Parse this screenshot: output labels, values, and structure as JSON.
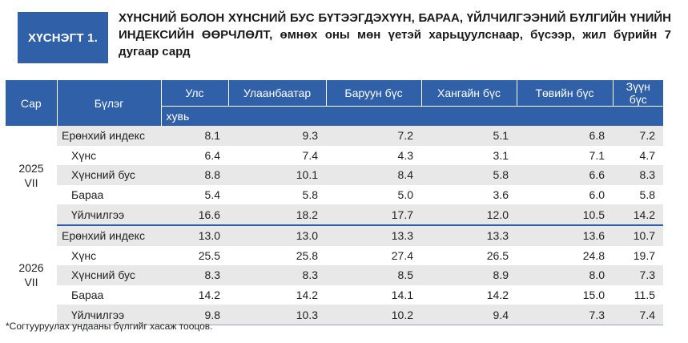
{
  "header": {
    "tag": "ХҮСНЭГТ 1.",
    "title": "ХҮНСНИЙ БОЛОН ХҮНСНИЙ БУС БҮТЭЭГДЭХҮҮН, БАРАА, ҮЙЛЧИЛГЭЭНИЙ БҮЛГИЙН ҮНИЙН ИНДЕКСИЙН ӨӨРЧЛӨЛТ, өмнөх оны мөн үетэй харьцуулснаар, бүсээр, жил бүрийн 7 дугаар сард"
  },
  "table": {
    "col_sar": "Сар",
    "col_group": "Бүлэг",
    "columns": [
      "Улс",
      "Улаанбаатар",
      "Баруун бүс",
      "Хангайн бүс",
      "Төвийн бүс",
      "Зүүн бүс"
    ],
    "unit": "хувь",
    "blocks": [
      {
        "year": "2025",
        "month": "VII",
        "rows": [
          {
            "label": "Ерөнхий индекс",
            "values": [
              "8.1",
              "9.3",
              "7.2",
              "5.1",
              "6.8",
              "7.2"
            ]
          },
          {
            "label": "Хүнс",
            "values": [
              "6.4",
              "7.4",
              "4.3",
              "3.1",
              "7.1",
              "4.7"
            ]
          },
          {
            "label": "Хүнсний бус",
            "values": [
              "8.8",
              "10.1",
              "8.4",
              "5.8",
              "6.6",
              "8.3"
            ]
          },
          {
            "label": "Бараа",
            "values": [
              "5.4",
              "5.8",
              "5.0",
              "3.6",
              "6.0",
              "5.8"
            ]
          },
          {
            "label": "Үйлчилгээ",
            "values": [
              "16.6",
              "18.2",
              "17.7",
              "12.0",
              "10.5",
              "14.2"
            ]
          }
        ]
      },
      {
        "year": "2026",
        "month": "VII",
        "rows": [
          {
            "label": "Ерөнхий индекс",
            "values": [
              "13.0",
              "13.0",
              "13.3",
              "13.3",
              "13.6",
              "10.7"
            ]
          },
          {
            "label": "Хүнс",
            "values": [
              "25.5",
              "25.8",
              "27.4",
              "26.5",
              "24.8",
              "19.7"
            ]
          },
          {
            "label": "Хүнсний бус",
            "values": [
              "8.3",
              "8.3",
              "8.5",
              "8.9",
              "8.0",
              "7.3"
            ]
          },
          {
            "label": "Бараа",
            "values": [
              "14.2",
              "14.2",
              "14.1",
              "14.2",
              "15.0",
              "11.5"
            ]
          },
          {
            "label": "Үйлчилгээ",
            "values": [
              "9.8",
              "10.3",
              "10.2",
              "9.4",
              "7.3",
              "7.4"
            ]
          }
        ]
      }
    ]
  },
  "footnote": "*Согтууруулах ундааны бүлгийг хасаж тооцов.",
  "colors": {
    "accent": "#2f60a8",
    "row_shade": "#e8e8e8"
  }
}
